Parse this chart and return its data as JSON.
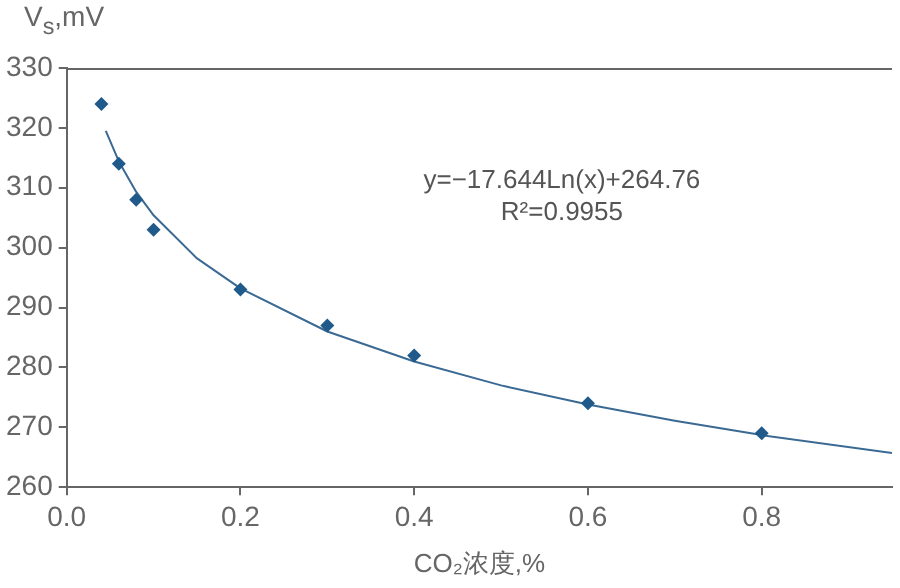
{
  "chart_data": {
    "type": "scatter",
    "xlabel": "CO₂浓度,%",
    "ylabel": "V$_{s}$,mV",
    "series": [
      {
        "type": "scatter",
        "color": "#1f5a8a",
        "marker": "diamond",
        "x": [
          0.04,
          0.06,
          0.08,
          0.1,
          0.2,
          0.3,
          0.4,
          0.6,
          0.8
        ],
        "values": [
          324,
          314,
          308,
          303,
          293,
          287,
          282,
          274,
          269
        ]
      },
      {
        "type": "line",
        "color": "#3a6a94",
        "marker": "none",
        "x": [
          0.045,
          0.06,
          0.08,
          0.1,
          0.15,
          0.2,
          0.3,
          0.4,
          0.5,
          0.6,
          0.7,
          0.8,
          0.95
        ],
        "values": [
          319.5,
          314.4,
          309.3,
          305.4,
          298.2,
          293.2,
          286.0,
          281.0,
          277.0,
          273.8,
          271.1,
          268.7,
          265.7
        ]
      }
    ],
    "annotations": [
      "y=−17.644Ln(x)+264.76",
      "R²=0.9955"
    ],
    "xlim": [
      0,
      0.95
    ],
    "ylim": [
      260,
      330
    ],
    "xticks": [
      {
        "value": 0,
        "label": "0.0"
      },
      {
        "value": 0.2,
        "label": "0.2"
      },
      {
        "value": 0.4,
        "label": "0.4"
      },
      {
        "value": 0.6,
        "label": "0.6"
      },
      {
        "value": 0.8,
        "label": "0.8"
      }
    ],
    "yticks": [
      260,
      270,
      280,
      290,
      300,
      310,
      320,
      330
    ],
    "grid": false,
    "legend": false
  }
}
